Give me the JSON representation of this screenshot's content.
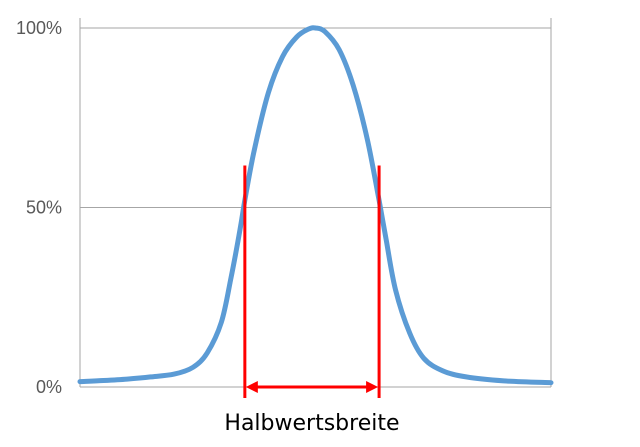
{
  "chart_data": {
    "type": "line",
    "title": "",
    "xlabel": "",
    "ylabel": "",
    "y_ticks": [
      "0%",
      "50%",
      "100%"
    ],
    "ylim": [
      0,
      100
    ],
    "xlim": [
      -5,
      5
    ],
    "grid": true,
    "colors": {
      "curve": "#5b9bd5",
      "marker": "#ff0000",
      "grid": "#a6a6a6"
    },
    "series": [
      {
        "values": [
          {
            "x": -5.0,
            "y": 1.5
          },
          {
            "x": -4.5,
            "y": 1.8
          },
          {
            "x": -4.0,
            "y": 2.2
          },
          {
            "x": -3.5,
            "y": 2.8
          },
          {
            "x": -3.0,
            "y": 3.6
          },
          {
            "x": -2.6,
            "y": 5.5
          },
          {
            "x": -2.3,
            "y": 9.5
          },
          {
            "x": -2.0,
            "y": 18
          },
          {
            "x": -1.8,
            "y": 30
          },
          {
            "x": -1.6,
            "y": 44
          },
          {
            "x": -1.5,
            "y": 52
          },
          {
            "x": -1.3,
            "y": 66
          },
          {
            "x": -1.0,
            "y": 82
          },
          {
            "x": -0.7,
            "y": 92
          },
          {
            "x": -0.4,
            "y": 97.5
          },
          {
            "x": -0.15,
            "y": 99.7
          },
          {
            "x": 0.0,
            "y": 100
          },
          {
            "x": 0.2,
            "y": 99
          },
          {
            "x": 0.5,
            "y": 94
          },
          {
            "x": 0.8,
            "y": 84
          },
          {
            "x": 1.1,
            "y": 69
          },
          {
            "x": 1.35,
            "y": 52
          },
          {
            "x": 1.5,
            "y": 41
          },
          {
            "x": 1.7,
            "y": 27
          },
          {
            "x": 2.0,
            "y": 15
          },
          {
            "x": 2.3,
            "y": 8
          },
          {
            "x": 2.7,
            "y": 4.5
          },
          {
            "x": 3.2,
            "y": 2.8
          },
          {
            "x": 4.0,
            "y": 1.7
          },
          {
            "x": 5.0,
            "y": 1.2
          }
        ]
      }
    ],
    "fwhm": {
      "left_x": -1.5,
      "right_x": 1.35,
      "level": 50
    },
    "annotation": "Halbwertsbreite"
  }
}
